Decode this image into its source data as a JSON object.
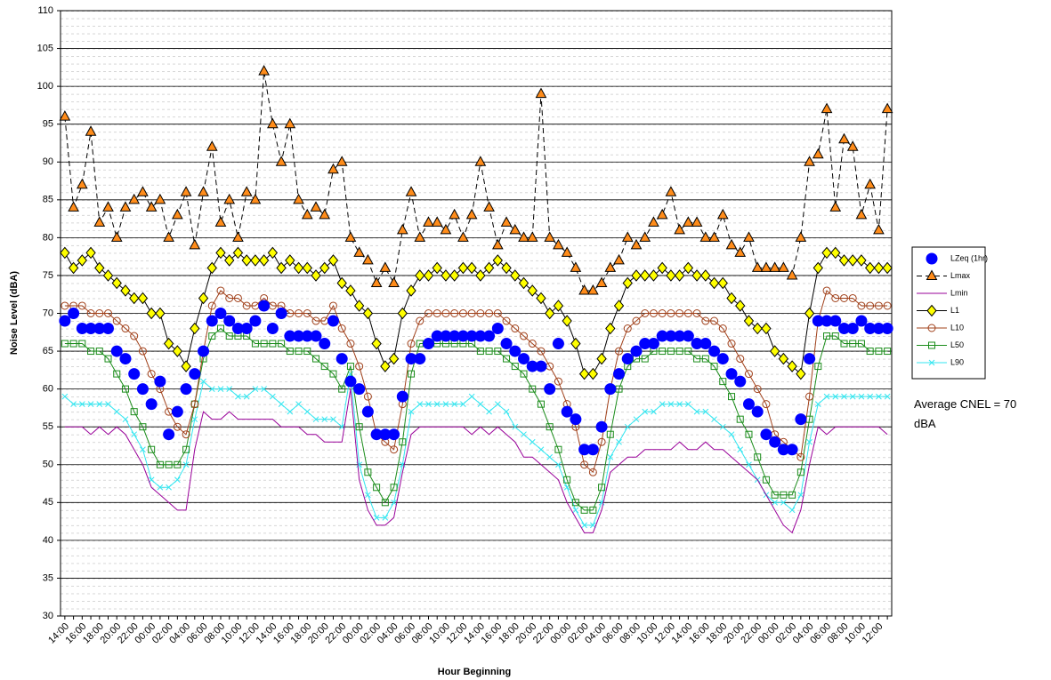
{
  "chart_data": {
    "type": "line",
    "x_label": "Hour Beginning",
    "y_label": "Noise Level (dBA)",
    "ylim": [
      30,
      110
    ],
    "yticks": [
      30,
      35,
      40,
      45,
      50,
      55,
      60,
      65,
      70,
      75,
      80,
      85,
      90,
      95,
      100,
      105,
      110
    ],
    "grid": true,
    "legend": "right",
    "annotation": "Average CNEL = 70 dBA",
    "categories": [
      "14:00",
      null,
      "16:00",
      null,
      "18:00",
      null,
      "20:00",
      null,
      "22:00",
      null,
      "00:00",
      null,
      "02:00",
      null,
      "04:00",
      null,
      "06:00",
      null,
      "08:00",
      null,
      "10:00",
      null,
      "12:00",
      null,
      "14:00",
      null,
      "16:00",
      null,
      "18:00",
      null,
      "20:00",
      null,
      "22:00",
      null,
      "00:00",
      null,
      "02:00",
      null,
      "04:00",
      null,
      "06:00",
      null,
      "08:00",
      null,
      "10:00",
      null,
      "12:00",
      null,
      "14:00",
      null,
      "16:00",
      null,
      "18:00",
      null,
      "20:00",
      null,
      "22:00",
      null,
      "00:00",
      null,
      "02:00",
      null,
      "04:00",
      null,
      "06:00",
      null,
      "08:00",
      null,
      "10:00",
      null,
      "12:00",
      null,
      "14:00",
      null,
      "16:00",
      null,
      "18:00",
      null,
      "20:00",
      null,
      "22:00",
      null,
      "00:00",
      null,
      "02:00",
      null,
      "04:00",
      null,
      "06:00",
      null,
      "08:00",
      null,
      "10:00",
      null,
      "12:00",
      null
    ],
    "series": [
      {
        "name": "LZeq (1hr)",
        "color": "#0000ff",
        "marker": "circle",
        "marker_fill": "#0000ff",
        "line": false,
        "values": [
          69,
          70,
          68,
          68,
          68,
          68,
          65,
          64,
          62,
          60,
          58,
          61,
          54,
          57,
          60,
          62,
          65,
          69,
          70,
          69,
          68,
          68,
          69,
          71,
          68,
          70,
          67,
          67,
          67,
          67,
          66,
          69,
          64,
          61,
          60,
          57,
          54,
          54,
          54,
          59,
          64,
          64,
          66,
          67,
          67,
          67,
          67,
          67,
          67,
          67,
          68,
          66,
          65,
          64,
          63,
          63,
          60,
          66,
          57,
          56,
          52,
          52,
          55,
          60,
          62,
          64,
          65,
          66,
          66,
          67,
          67,
          67,
          67,
          66,
          66,
          65,
          64,
          62,
          61,
          58,
          57,
          54,
          53,
          52,
          52,
          56,
          64,
          69,
          69,
          69,
          68,
          68,
          69,
          68,
          68,
          68
        ]
      },
      {
        "name": "Lmax",
        "color": "#000000",
        "marker": "triangle",
        "marker_fill": "#ff8c1a",
        "dash": "6,4",
        "line": true,
        "values": [
          96,
          84,
          87,
          94,
          82,
          84,
          80,
          84,
          85,
          86,
          84,
          85,
          80,
          83,
          86,
          79,
          86,
          92,
          82,
          85,
          80,
          86,
          85,
          102,
          95,
          90,
          95,
          85,
          83,
          84,
          83,
          89,
          90,
          80,
          78,
          77,
          74,
          76,
          74,
          81,
          86,
          80,
          82,
          82,
          81,
          83,
          80,
          83,
          90,
          84,
          79,
          82,
          81,
          80,
          80,
          99,
          80,
          79,
          78,
          76,
          73,
          73,
          74,
          76,
          77,
          80,
          79,
          80,
          82,
          83,
          86,
          81,
          82,
          82,
          80,
          80,
          83,
          79,
          78,
          80,
          76,
          76,
          76,
          76,
          75,
          80,
          90,
          91,
          97,
          84,
          93,
          92,
          83,
          87,
          81,
          97
        ]
      },
      {
        "name": "Lmin",
        "color": "#990099",
        "marker": "none",
        "line": true,
        "values": [
          55,
          55,
          55,
          54,
          55,
          54,
          55,
          54,
          52,
          50,
          47,
          46,
          45,
          44,
          44,
          52,
          57,
          56,
          56,
          57,
          56,
          56,
          56,
          56,
          56,
          55,
          55,
          55,
          54,
          54,
          53,
          53,
          53,
          60,
          48,
          44,
          42,
          42,
          43,
          49,
          54,
          55,
          55,
          55,
          55,
          55,
          55,
          54,
          55,
          54,
          55,
          54,
          53,
          51,
          51,
          50,
          49,
          48,
          45,
          43,
          41,
          41,
          44,
          49,
          50,
          51,
          51,
          52,
          52,
          52,
          52,
          53,
          52,
          52,
          53,
          52,
          52,
          51,
          50,
          49,
          48,
          46,
          44,
          42,
          41,
          44,
          50,
          55,
          54,
          55,
          55,
          55,
          55,
          55,
          55,
          54
        ]
      },
      {
        "name": "L1",
        "color": "#000000",
        "marker": "diamond",
        "marker_fill": "#ffff00",
        "line": true,
        "values": [
          78,
          76,
          77,
          78,
          76,
          75,
          74,
          73,
          72,
          72,
          70,
          70,
          66,
          65,
          63,
          68,
          72,
          76,
          78,
          77,
          78,
          77,
          77,
          77,
          78,
          76,
          77,
          76,
          76,
          75,
          76,
          77,
          74,
          73,
          71,
          70,
          66,
          63,
          64,
          70,
          73,
          75,
          75,
          76,
          75,
          75,
          76,
          76,
          75,
          76,
          77,
          76,
          75,
          74,
          73,
          72,
          70,
          71,
          69,
          66,
          62,
          62,
          64,
          68,
          71,
          74,
          75,
          75,
          75,
          76,
          75,
          75,
          76,
          75,
          75,
          74,
          74,
          72,
          71,
          69,
          68,
          68,
          65,
          64,
          63,
          62,
          70,
          76,
          78,
          78,
          77,
          77,
          77,
          76,
          76,
          76
        ]
      },
      {
        "name": "L10",
        "color": "#a0401a",
        "marker": "circle",
        "marker_fill": "none",
        "line": true,
        "values": [
          71,
          71,
          71,
          70,
          70,
          70,
          69,
          68,
          67,
          65,
          62,
          60,
          57,
          55,
          54,
          58,
          65,
          71,
          73,
          72,
          72,
          71,
          71,
          72,
          71,
          71,
          70,
          70,
          70,
          69,
          69,
          71,
          68,
          66,
          63,
          59,
          54,
          53,
          52,
          58,
          66,
          69,
          70,
          70,
          70,
          70,
          70,
          70,
          70,
          70,
          70,
          69,
          68,
          67,
          66,
          65,
          63,
          61,
          58,
          55,
          50,
          49,
          53,
          60,
          65,
          68,
          69,
          70,
          70,
          70,
          70,
          70,
          70,
          70,
          69,
          69,
          68,
          66,
          64,
          62,
          60,
          58,
          54,
          53,
          52,
          51,
          59,
          69,
          73,
          72,
          72,
          72,
          71,
          71,
          71,
          71
        ]
      },
      {
        "name": "L50",
        "color": "#1a8c1a",
        "marker": "square",
        "marker_fill": "none",
        "line": true,
        "values": [
          66,
          66,
          66,
          65,
          65,
          64,
          62,
          60,
          57,
          55,
          52,
          50,
          50,
          50,
          52,
          58,
          64,
          67,
          68,
          67,
          67,
          67,
          66,
          66,
          66,
          66,
          65,
          65,
          65,
          64,
          63,
          62,
          60,
          63,
          55,
          49,
          47,
          45,
          47,
          53,
          62,
          66,
          66,
          66,
          66,
          66,
          66,
          66,
          65,
          65,
          65,
          64,
          63,
          62,
          60,
          58,
          55,
          52,
          48,
          45,
          44,
          44,
          47,
          54,
          60,
          63,
          64,
          64,
          65,
          65,
          65,
          65,
          65,
          64,
          64,
          63,
          61,
          59,
          56,
          54,
          51,
          48,
          46,
          46,
          46,
          49,
          56,
          63,
          67,
          67,
          66,
          66,
          66,
          65,
          65,
          65
        ]
      },
      {
        "name": "L90",
        "color": "#33e6f0",
        "marker": "x",
        "marker_fill": "none",
        "line": true,
        "values": [
          59,
          58,
          58,
          58,
          58,
          58,
          57,
          56,
          54,
          52,
          48,
          47,
          47,
          48,
          50,
          56,
          61,
          60,
          60,
          60,
          59,
          59,
          60,
          60,
          59,
          58,
          57,
          58,
          57,
          56,
          56,
          56,
          55,
          62,
          50,
          46,
          43,
          43,
          45,
          50,
          57,
          58,
          58,
          58,
          58,
          58,
          58,
          59,
          58,
          57,
          58,
          57,
          55,
          54,
          53,
          52,
          51,
          50,
          47,
          44,
          42,
          42,
          45,
          51,
          53,
          55,
          56,
          57,
          57,
          58,
          58,
          58,
          58,
          57,
          57,
          56,
          55,
          54,
          52,
          50,
          48,
          46,
          45,
          45,
          44,
          46,
          53,
          58,
          59,
          59,
          59,
          59,
          59,
          59,
          59,
          59
        ]
      }
    ]
  }
}
